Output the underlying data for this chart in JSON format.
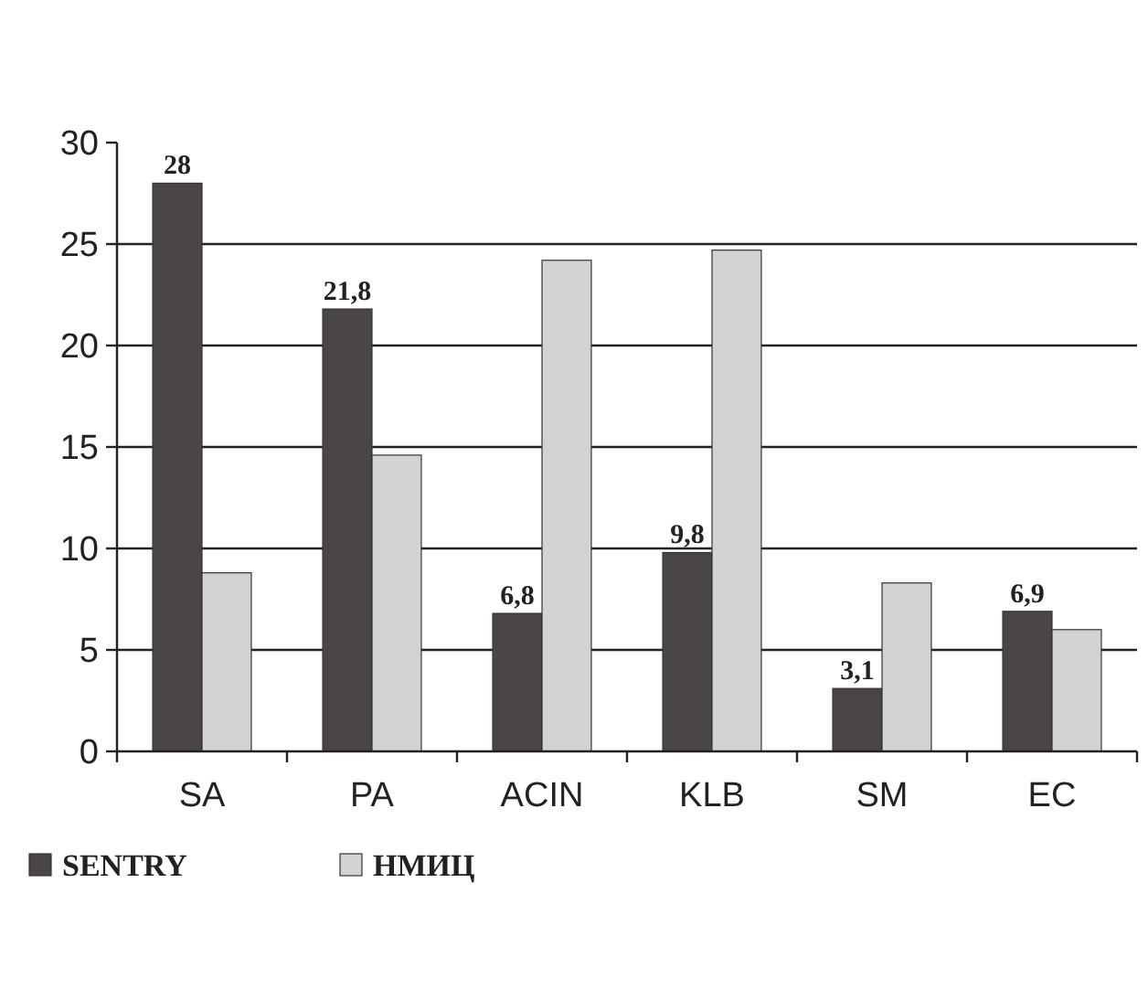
{
  "chart_data": {
    "type": "bar",
    "categories": [
      "SA",
      "PA",
      "ACIN",
      "KLB",
      "SM",
      "EC"
    ],
    "series": [
      {
        "name": "SENTRY",
        "color": "#4a4546",
        "values": [
          28,
          21.8,
          6.8,
          9.8,
          3.1,
          6.9
        ],
        "value_labels": [
          "28",
          "21,8",
          "6,8",
          "9,8",
          "3,1",
          "6,9"
        ]
      },
      {
        "name": "НМИЦ",
        "color": "#d3d3d3",
        "values": [
          8.8,
          14.6,
          24.2,
          24.7,
          8.3,
          6.0
        ]
      }
    ],
    "ylim": [
      0,
      30
    ],
    "yticks": [
      0,
      5,
      10,
      15,
      20,
      25,
      30
    ],
    "grid": "y",
    "legend": "bottom left"
  }
}
